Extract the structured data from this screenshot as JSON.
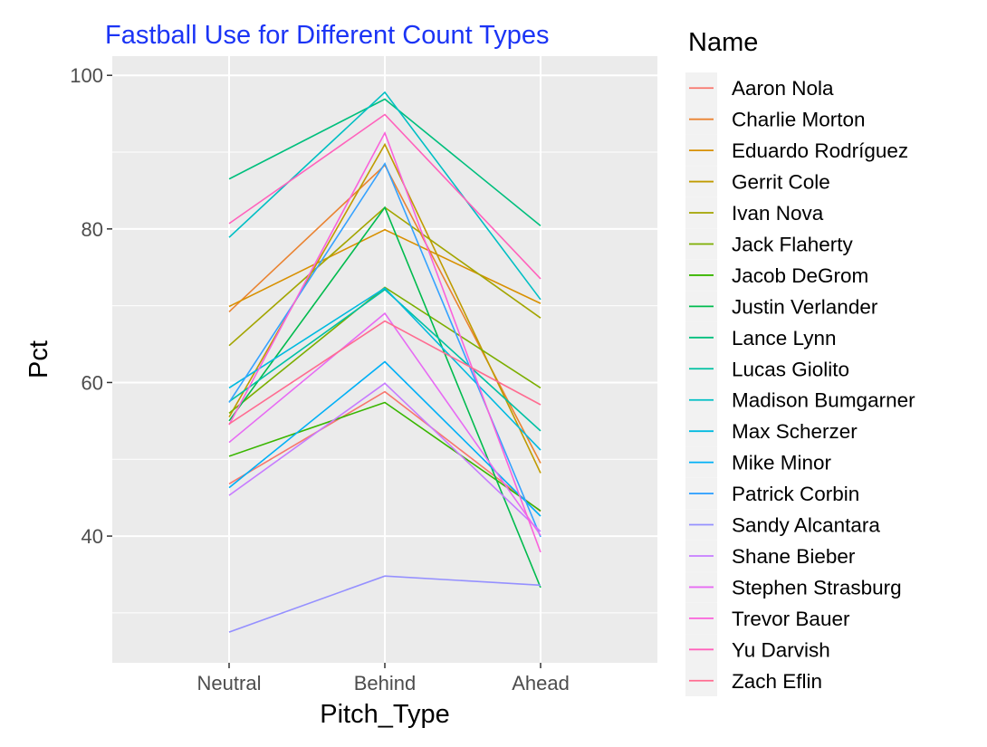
{
  "chart_data": {
    "type": "line",
    "title": "Fastball Use for Different Count Types",
    "xlabel": "Pitch_Type",
    "ylabel": "Pct",
    "categories": [
      "Neutral",
      "Behind",
      "Ahead"
    ],
    "yticks": [
      40,
      60,
      80,
      100
    ],
    "ylim": [
      23.5,
      102.5
    ],
    "grid": true,
    "legend_title": "Name",
    "legend_position": "right",
    "colors": {
      "title": "#1b34f5",
      "panel": "#ebebeb",
      "grid": "#ffffff",
      "tick_label": "#4d4d4d"
    },
    "series": [
      {
        "name": "Aaron Nola",
        "color": "#F8766D",
        "values": [
          46.8,
          58.8,
          43.2
        ]
      },
      {
        "name": "Charlie Morton",
        "color": "#EA8331",
        "values": [
          69.2,
          88.3,
          49.5
        ]
      },
      {
        "name": "Eduardo Rodríguez",
        "color": "#D89000",
        "values": [
          69.9,
          79.9,
          70.3
        ]
      },
      {
        "name": "Gerrit Cole",
        "color": "#C09B00",
        "values": [
          55.5,
          91.0,
          48.2
        ]
      },
      {
        "name": "Ivan Nova",
        "color": "#A3A500",
        "values": [
          64.8,
          82.8,
          68.4
        ]
      },
      {
        "name": "Jack Flaherty",
        "color": "#7CAE00",
        "values": [
          56.0,
          72.4,
          59.3
        ]
      },
      {
        "name": "Jacob DeGrom",
        "color": "#39B600",
        "values": [
          50.4,
          57.4,
          43.3
        ]
      },
      {
        "name": "Justin Verlander",
        "color": "#00BB4E",
        "values": [
          55.0,
          82.8,
          33.3
        ]
      },
      {
        "name": "Lance Lynn",
        "color": "#00BF7D",
        "values": [
          86.5,
          96.9,
          80.4
        ]
      },
      {
        "name": "Lucas Giolito",
        "color": "#00C1A3",
        "values": [
          57.5,
          72.1,
          53.7
        ]
      },
      {
        "name": "Madison Bumgarner",
        "color": "#00BFC4",
        "values": [
          78.9,
          97.8,
          70.8
        ]
      },
      {
        "name": "Max Scherzer",
        "color": "#00BAE0",
        "values": [
          59.3,
          72.3,
          51.2
        ]
      },
      {
        "name": "Mike Minor",
        "color": "#00B0F6",
        "values": [
          46.3,
          62.7,
          42.6
        ]
      },
      {
        "name": "Patrick Corbin",
        "color": "#35A2FF",
        "values": [
          57.4,
          88.5,
          39.9
        ]
      },
      {
        "name": "Sandy Alcantara",
        "color": "#9590FF",
        "values": [
          27.5,
          34.8,
          33.6
        ]
      },
      {
        "name": "Shane Bieber",
        "color": "#C77CFF",
        "values": [
          45.3,
          59.9,
          40.6
        ]
      },
      {
        "name": "Stephen Strasburg",
        "color": "#E76BF3",
        "values": [
          52.2,
          69.0,
          40.1
        ]
      },
      {
        "name": "Trevor Bauer",
        "color": "#FA62DB",
        "values": [
          54.5,
          92.5,
          37.9
        ]
      },
      {
        "name": "Yu Darvish",
        "color": "#FF62BC",
        "values": [
          80.7,
          94.9,
          73.5
        ]
      },
      {
        "name": "Zach Eflin",
        "color": "#FF6C91",
        "values": [
          54.6,
          68.0,
          57.1
        ]
      }
    ]
  }
}
